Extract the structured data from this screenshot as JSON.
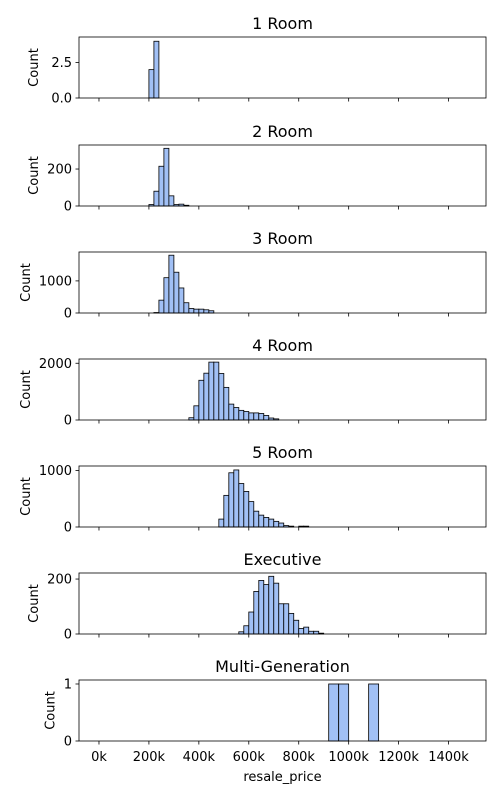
{
  "colors": {
    "bar_fill": "#a1c0f5",
    "bar_edge": "#000000",
    "axis": "#000000",
    "background": "#ffffff"
  },
  "chart_data": [
    {
      "type": "bar",
      "title": "1 Room",
      "ylabel": "Count",
      "xlabel": "",
      "ylim": [
        0,
        4.3
      ],
      "yticks": [
        0.0,
        2.5
      ],
      "ytick_labels": [
        "0.0",
        "2.5"
      ],
      "show_xtick_labels": false,
      "bins": [
        {
          "x0": 200000,
          "x1": 220000,
          "count": 2
        },
        {
          "x0": 220000,
          "x1": 240000,
          "count": 4
        }
      ]
    },
    {
      "type": "bar",
      "title": "2 Room",
      "ylabel": "Count",
      "xlabel": "",
      "ylim": [
        0,
        330
      ],
      "yticks": [
        0,
        200
      ],
      "ytick_labels": [
        "0",
        "200"
      ],
      "show_xtick_labels": false,
      "bins": [
        {
          "x0": 200000,
          "x1": 220000,
          "count": 8
        },
        {
          "x0": 220000,
          "x1": 240000,
          "count": 80
        },
        {
          "x0": 240000,
          "x1": 260000,
          "count": 215
        },
        {
          "x0": 260000,
          "x1": 280000,
          "count": 312
        },
        {
          "x0": 280000,
          "x1": 300000,
          "count": 55
        },
        {
          "x0": 300000,
          "x1": 320000,
          "count": 8
        },
        {
          "x0": 320000,
          "x1": 340000,
          "count": 10
        },
        {
          "x0": 340000,
          "x1": 360000,
          "count": 4
        }
      ]
    },
    {
      "type": "bar",
      "title": "3 Room",
      "ylabel": "Count",
      "xlabel": "",
      "ylim": [
        0,
        1900
      ],
      "yticks": [
        0,
        1000
      ],
      "ytick_labels": [
        "0",
        "1000"
      ],
      "show_xtick_labels": false,
      "bins": [
        {
          "x0": 220000,
          "x1": 240000,
          "count": 15
        },
        {
          "x0": 240000,
          "x1": 260000,
          "count": 400
        },
        {
          "x0": 260000,
          "x1": 280000,
          "count": 1100
        },
        {
          "x0": 280000,
          "x1": 300000,
          "count": 1800
        },
        {
          "x0": 300000,
          "x1": 320000,
          "count": 1270
        },
        {
          "x0": 320000,
          "x1": 340000,
          "count": 780
        },
        {
          "x0": 340000,
          "x1": 360000,
          "count": 320
        },
        {
          "x0": 360000,
          "x1": 380000,
          "count": 140
        },
        {
          "x0": 380000,
          "x1": 400000,
          "count": 120
        },
        {
          "x0": 400000,
          "x1": 420000,
          "count": 120
        },
        {
          "x0": 420000,
          "x1": 440000,
          "count": 100
        },
        {
          "x0": 440000,
          "x1": 460000,
          "count": 70
        }
      ]
    },
    {
      "type": "bar",
      "title": "4 Room",
      "ylabel": "Count",
      "xlabel": "",
      "ylim": [
        0,
        2150
      ],
      "yticks": [
        0,
        2000
      ],
      "ytick_labels": [
        "0",
        "2000"
      ],
      "show_xtick_labels": false,
      "bins": [
        {
          "x0": 360000,
          "x1": 380000,
          "count": 80
        },
        {
          "x0": 380000,
          "x1": 400000,
          "count": 500
        },
        {
          "x0": 400000,
          "x1": 420000,
          "count": 1400
        },
        {
          "x0": 420000,
          "x1": 440000,
          "count": 1650
        },
        {
          "x0": 440000,
          "x1": 460000,
          "count": 2040
        },
        {
          "x0": 460000,
          "x1": 480000,
          "count": 2040
        },
        {
          "x0": 480000,
          "x1": 500000,
          "count": 1640
        },
        {
          "x0": 500000,
          "x1": 520000,
          "count": 1150
        },
        {
          "x0": 520000,
          "x1": 540000,
          "count": 560
        },
        {
          "x0": 540000,
          "x1": 560000,
          "count": 440
        },
        {
          "x0": 560000,
          "x1": 580000,
          "count": 340
        },
        {
          "x0": 580000,
          "x1": 600000,
          "count": 300
        },
        {
          "x0": 600000,
          "x1": 620000,
          "count": 250
        },
        {
          "x0": 620000,
          "x1": 640000,
          "count": 250
        },
        {
          "x0": 640000,
          "x1": 660000,
          "count": 230
        },
        {
          "x0": 660000,
          "x1": 680000,
          "count": 160
        },
        {
          "x0": 680000,
          "x1": 700000,
          "count": 70
        },
        {
          "x0": 700000,
          "x1": 720000,
          "count": 40
        }
      ]
    },
    {
      "type": "bar",
      "title": "5 Room",
      "ylabel": "Count",
      "xlabel": "",
      "ylim": [
        0,
        1080
      ],
      "yticks": [
        0,
        1000
      ],
      "ytick_labels": [
        "0",
        "1000"
      ],
      "show_xtick_labels": false,
      "bins": [
        {
          "x0": 480000,
          "x1": 500000,
          "count": 140
        },
        {
          "x0": 500000,
          "x1": 520000,
          "count": 560
        },
        {
          "x0": 520000,
          "x1": 540000,
          "count": 960
        },
        {
          "x0": 540000,
          "x1": 560000,
          "count": 1010
        },
        {
          "x0": 560000,
          "x1": 580000,
          "count": 770
        },
        {
          "x0": 580000,
          "x1": 600000,
          "count": 630
        },
        {
          "x0": 600000,
          "x1": 620000,
          "count": 450
        },
        {
          "x0": 620000,
          "x1": 640000,
          "count": 280
        },
        {
          "x0": 640000,
          "x1": 660000,
          "count": 210
        },
        {
          "x0": 660000,
          "x1": 680000,
          "count": 170
        },
        {
          "x0": 680000,
          "x1": 700000,
          "count": 140
        },
        {
          "x0": 700000,
          "x1": 720000,
          "count": 100
        },
        {
          "x0": 720000,
          "x1": 740000,
          "count": 70
        },
        {
          "x0": 740000,
          "x1": 760000,
          "count": 25
        },
        {
          "x0": 760000,
          "x1": 780000,
          "count": 15
        },
        {
          "x0": 800000,
          "x1": 820000,
          "count": 15
        },
        {
          "x0": 820000,
          "x1": 840000,
          "count": 15
        }
      ]
    },
    {
      "type": "bar",
      "title": "Executive",
      "ylabel": "Count",
      "xlabel": "",
      "ylim": [
        0,
        222
      ],
      "yticks": [
        0,
        200
      ],
      "ytick_labels": [
        "0",
        "200"
      ],
      "show_xtick_labels": false,
      "bins": [
        {
          "x0": 560000,
          "x1": 580000,
          "count": 8
        },
        {
          "x0": 580000,
          "x1": 600000,
          "count": 30
        },
        {
          "x0": 600000,
          "x1": 620000,
          "count": 80
        },
        {
          "x0": 620000,
          "x1": 640000,
          "count": 155
        },
        {
          "x0": 640000,
          "x1": 660000,
          "count": 195
        },
        {
          "x0": 660000,
          "x1": 680000,
          "count": 180
        },
        {
          "x0": 680000,
          "x1": 700000,
          "count": 210
        },
        {
          "x0": 700000,
          "x1": 720000,
          "count": 185
        },
        {
          "x0": 720000,
          "x1": 740000,
          "count": 110
        },
        {
          "x0": 740000,
          "x1": 760000,
          "count": 110
        },
        {
          "x0": 760000,
          "x1": 780000,
          "count": 75
        },
        {
          "x0": 780000,
          "x1": 800000,
          "count": 50
        },
        {
          "x0": 800000,
          "x1": 820000,
          "count": 20
        },
        {
          "x0": 820000,
          "x1": 840000,
          "count": 25
        },
        {
          "x0": 840000,
          "x1": 860000,
          "count": 10
        },
        {
          "x0": 860000,
          "x1": 880000,
          "count": 10
        },
        {
          "x0": 880000,
          "x1": 900000,
          "count": 3
        }
      ]
    },
    {
      "type": "bar",
      "title": "Multi-Generation",
      "ylabel": "Count",
      "xlabel": "resale_price",
      "ylim": [
        0,
        1.07
      ],
      "yticks": [
        0,
        1
      ],
      "ytick_labels": [
        "0",
        "1"
      ],
      "show_xtick_labels": true,
      "bins": [
        {
          "x0": 920000,
          "x1": 960000,
          "count": 1
        },
        {
          "x0": 960000,
          "x1": 1000000,
          "count": 1
        },
        {
          "x0": 1080000,
          "x1": 1120000,
          "count": 1
        }
      ]
    }
  ],
  "shared_xaxis": {
    "xlim": [
      -80000,
      1550000
    ],
    "ticks": [
      0,
      200000,
      400000,
      600000,
      800000,
      1000000,
      1200000,
      1400000
    ],
    "tick_labels": [
      "0k",
      "200k",
      "400k",
      "600k",
      "800k",
      "1000k",
      "1200k",
      "1400k"
    ]
  }
}
